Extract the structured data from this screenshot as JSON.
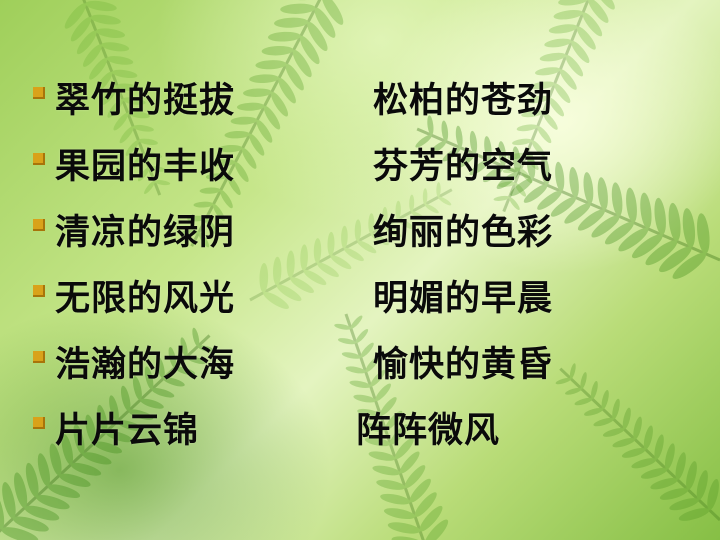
{
  "slide": {
    "background_theme": "green fern leaves",
    "bullet_color": "#d9a21a",
    "text_color": "#0a0a0a",
    "rows": [
      {
        "left": "翠竹的挺拔",
        "right": "松柏的苍劲"
      },
      {
        "left": "果园的丰收",
        "right": "芬芳的空气"
      },
      {
        "left": "清凉的绿阴",
        "right": "绚丽的色彩"
      },
      {
        "left": "无限的风光",
        "right": "明媚的早晨"
      },
      {
        "left": "浩瀚的大海",
        "right": "愉快的黄昏"
      },
      {
        "left": "片片云锦",
        "right": "阵阵微风"
      }
    ]
  }
}
